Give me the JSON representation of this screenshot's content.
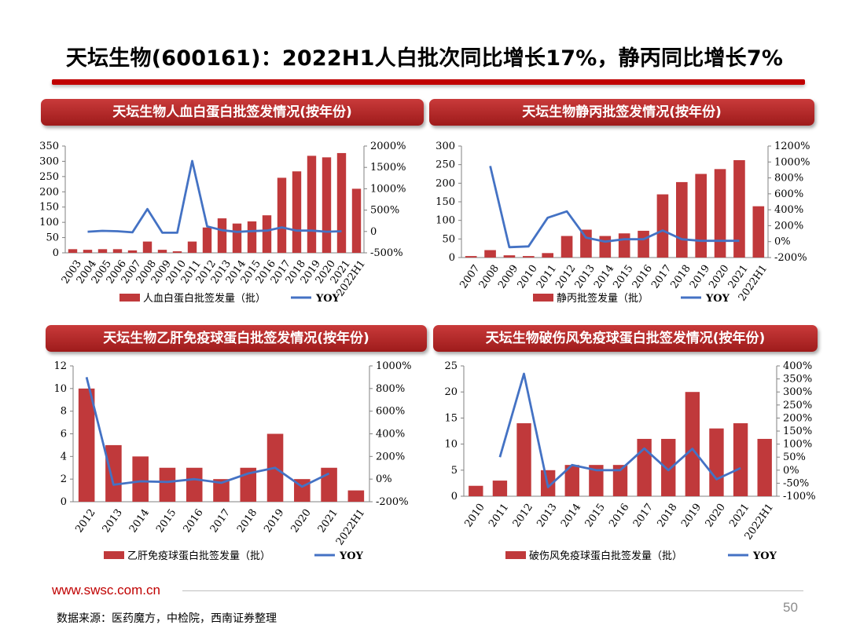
{
  "page": {
    "title": "天坛生物(600161)：2022H1人白批次同比增长17%，静丙同比增长7%",
    "footer_url": "www.swsc.com.cn",
    "page_number": "50",
    "source": "数据来源：医药魔方，中检院，西南证券整理"
  },
  "colors": {
    "bar": "#c0393b",
    "line": "#4472c4",
    "banner": "#b22222",
    "accent": "#c00000"
  },
  "chart_data": [
    {
      "type": "bar",
      "title": "天坛生物人血白蛋白批签发情况(按年份)",
      "categories": [
        "2003",
        "2004",
        "2005",
        "2006",
        "2007",
        "2008",
        "2009",
        "2010",
        "2011",
        "2012",
        "2013",
        "2014",
        "2015",
        "2016",
        "2017",
        "2018",
        "2019",
        "2020",
        "2021",
        "2022H1"
      ],
      "series": [
        {
          "name": "人血白蛋白批签发量（批）",
          "axis": "left",
          "kind": "bar",
          "values": [
            12,
            10,
            12,
            12,
            8,
            37,
            10,
            5,
            37,
            83,
            113,
            96,
            103,
            123,
            246,
            267,
            318,
            313,
            327,
            210
          ]
        },
        {
          "name": "YOY",
          "axis": "right",
          "kind": "line",
          "values": [
            null,
            -5,
            15,
            5,
            -20,
            525,
            -30,
            -30,
            1650,
            120,
            30,
            -10,
            10,
            20,
            95,
            20,
            20,
            -5,
            5,
            null
          ]
        }
      ],
      "ylim": [
        0,
        350
      ],
      "yticks": [
        0,
        50,
        100,
        150,
        200,
        250,
        300,
        350
      ],
      "y2lim": [
        -500,
        2000
      ],
      "y2ticks": [
        "-500%",
        "0",
        "500%",
        "1000%",
        "1500%",
        "2000%"
      ]
    },
    {
      "type": "bar",
      "title": "天坛生物静丙批签发情况(按年份)",
      "categories": [
        "2007",
        "2008",
        "2009",
        "2010",
        "2011",
        "2012",
        "2013",
        "2014",
        "2015",
        "2016",
        "2017",
        "2018",
        "2019",
        "2020",
        "2021",
        "2022H1"
      ],
      "series": [
        {
          "name": "静丙批签发量（批）",
          "axis": "left",
          "kind": "bar",
          "values": [
            4,
            20,
            6,
            4,
            12,
            58,
            75,
            58,
            65,
            72,
            170,
            203,
            225,
            238,
            262,
            138
          ]
        },
        {
          "name": "YOY",
          "axis": "right",
          "kind": "line",
          "values": [
            null,
            950,
            -70,
            -60,
            300,
            380,
            50,
            0,
            30,
            30,
            140,
            30,
            10,
            10,
            10,
            null
          ]
        }
      ],
      "ylim": [
        0,
        300
      ],
      "yticks": [
        0,
        50,
        100,
        150,
        200,
        250,
        300
      ],
      "y2lim": [
        -200,
        1200
      ],
      "y2ticks": [
        "-200%",
        "0%",
        "200%",
        "400%",
        "600%",
        "800%",
        "1000%",
        "1200%"
      ]
    },
    {
      "type": "bar",
      "title": "天坛生物乙肝免疫球蛋白批签发情况(按年份)",
      "categories": [
        "2012",
        "2013",
        "2014",
        "2015",
        "2016",
        "2017",
        "2018",
        "2019",
        "2020",
        "2021",
        "2022H1"
      ],
      "series": [
        {
          "name": "乙肝免疫球蛋白批签发量（批）",
          "axis": "left",
          "kind": "bar",
          "values": [
            10,
            5,
            4,
            3,
            3,
            2,
            3,
            6,
            2,
            3,
            1
          ]
        },
        {
          "name": "YOY",
          "axis": "right",
          "kind": "line",
          "values": [
            900,
            -50,
            -20,
            -25,
            0,
            -33,
            50,
            100,
            -67,
            50,
            null
          ]
        }
      ],
      "ylim": [
        0,
        12
      ],
      "yticks": [
        0,
        2,
        4,
        6,
        8,
        10,
        12
      ],
      "y2lim": [
        -200,
        1000
      ],
      "y2ticks": [
        "-200%",
        "0%",
        "200%",
        "400%",
        "600%",
        "800%",
        "1000%"
      ]
    },
    {
      "type": "bar",
      "title": "天坛生物破伤风免疫球蛋白批签发情况(按年份)",
      "categories": [
        "2010",
        "2011",
        "2012",
        "2013",
        "2014",
        "2015",
        "2016",
        "2017",
        "2018",
        "2019",
        "2020",
        "2021",
        "2022H1"
      ],
      "series": [
        {
          "name": "破伤风免疫球蛋白批签发量（批）",
          "axis": "left",
          "kind": "bar",
          "values": [
            2,
            3,
            14,
            5,
            6,
            6,
            6,
            11,
            11,
            20,
            13,
            14,
            11
          ]
        },
        {
          "name": "YOY",
          "axis": "right",
          "kind": "line",
          "values": [
            null,
            50,
            370,
            -65,
            20,
            0,
            0,
            83,
            0,
            82,
            -35,
            8,
            null
          ]
        }
      ],
      "ylim": [
        0,
        25
      ],
      "yticks": [
        0,
        5,
        10,
        15,
        20,
        25
      ],
      "y2lim": [
        -100,
        400
      ],
      "y2ticks": [
        "-100%",
        "-50%",
        "0%",
        "50%",
        "100%",
        "150%",
        "200%",
        "250%",
        "300%",
        "350%",
        "400%"
      ]
    }
  ]
}
